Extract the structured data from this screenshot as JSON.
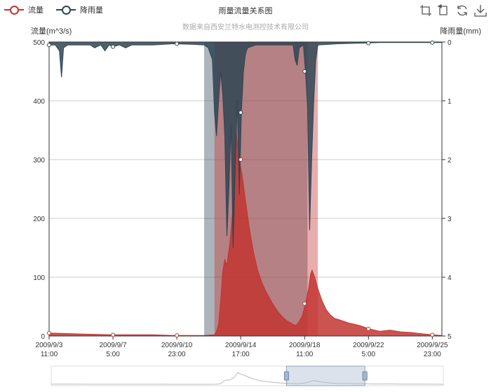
{
  "legend": [
    {
      "name": "流量",
      "color": "#c23531",
      "icon": "circle-line-icon"
    },
    {
      "name": "降雨量",
      "color": "#2f4554",
      "icon": "circle-line-icon"
    }
  ],
  "toolbox": [
    {
      "name": "zoom-icon",
      "label": "区域缩放"
    },
    {
      "name": "zoom-reset-icon",
      "label": "区域缩放还原"
    },
    {
      "name": "restore-icon",
      "label": "还原"
    },
    {
      "name": "save-image-icon",
      "label": "保存为图片"
    }
  ],
  "chart_data": {
    "type": "area",
    "title": "雨量流量关系图",
    "subtitle": "数据来自西安兰特水电测控技术有限公司",
    "x_tick_labels": [
      [
        "2009/9/3",
        "11:00"
      ],
      [
        "2009/9/7",
        "5:00"
      ],
      [
        "2009/9/10",
        "23:00"
      ],
      [
        "2009/9/14",
        "17:00"
      ],
      [
        "2009/9/18",
        "11:00"
      ],
      [
        "2009/9/22",
        "5:00"
      ],
      [
        "2009/9/25",
        "23:00"
      ]
    ],
    "y_left": {
      "name": "流量(m^3/s)",
      "min": 0,
      "max": 500,
      "ticks": [
        0,
        100,
        200,
        300,
        400,
        500
      ]
    },
    "y_right": {
      "name": "降雨量(mm)",
      "min": 0,
      "max": 5,
      "inverse": true,
      "ticks": [
        0,
        1,
        2,
        3,
        4,
        5
      ]
    },
    "mark_areas": [
      {
        "series": "降雨量",
        "color": "#2f4554",
        "opacity": 0.4,
        "from_day": 7.5,
        "to_day": 12.5
      },
      {
        "series": "流量",
        "color": "#c23531",
        "opacity": 0.4,
        "from_day": 8.0,
        "to_day": 13.0
      }
    ],
    "series": [
      {
        "name": "流量",
        "color": "#c23531",
        "points": [
          [
            0,
            5
          ],
          [
            1,
            4
          ],
          [
            2,
            3
          ],
          [
            3,
            2
          ],
          [
            4,
            2
          ],
          [
            5,
            2
          ],
          [
            6,
            1
          ],
          [
            7,
            1
          ],
          [
            7.5,
            1
          ],
          [
            8,
            2
          ],
          [
            8.1,
            8
          ],
          [
            8.2,
            20
          ],
          [
            8.3,
            60
          ],
          [
            8.4,
            110
          ],
          [
            8.5,
            130
          ],
          [
            8.6,
            120
          ],
          [
            8.75,
            160
          ],
          [
            8.9,
            220
          ],
          [
            9.0,
            320
          ],
          [
            9.05,
            350
          ],
          [
            9.1,
            330
          ],
          [
            9.2,
            300
          ],
          [
            9.35,
            270
          ],
          [
            9.5,
            230
          ],
          [
            9.7,
            180
          ],
          [
            9.9,
            140
          ],
          [
            10.1,
            110
          ],
          [
            10.3,
            90
          ],
          [
            10.5,
            75
          ],
          [
            10.7,
            62
          ],
          [
            10.9,
            50
          ],
          [
            11.1,
            40
          ],
          [
            11.3,
            32
          ],
          [
            11.5,
            26
          ],
          [
            11.7,
            22
          ],
          [
            11.9,
            18
          ],
          [
            12.0,
            20
          ],
          [
            12.1,
            25
          ],
          [
            12.25,
            35
          ],
          [
            12.4,
            55
          ],
          [
            12.55,
            80
          ],
          [
            12.65,
            105
          ],
          [
            12.72,
            112
          ],
          [
            12.85,
            100
          ],
          [
            13.0,
            80
          ],
          [
            13.2,
            60
          ],
          [
            13.4,
            45
          ],
          [
            13.6,
            36
          ],
          [
            13.8,
            30
          ],
          [
            14,
            28
          ],
          [
            14.5,
            22
          ],
          [
            15,
            18
          ],
          [
            15.5,
            12
          ],
          [
            16,
            8
          ],
          [
            16.5,
            10
          ],
          [
            17,
            7
          ],
          [
            17.5,
            6
          ],
          [
            18,
            4
          ],
          [
            18.5,
            2
          ],
          [
            19,
            1
          ]
        ]
      },
      {
        "name": "降雨量",
        "color": "#2f4554",
        "points": [
          [
            0,
            0.05
          ],
          [
            0.3,
            0.05
          ],
          [
            0.5,
            0.15
          ],
          [
            0.6,
            0.6
          ],
          [
            0.7,
            0.1
          ],
          [
            0.9,
            0.05
          ],
          [
            1.2,
            0.05
          ],
          [
            1.5,
            0.05
          ],
          [
            2.0,
            0.05
          ],
          [
            2.2,
            0.1
          ],
          [
            2.5,
            0.05
          ],
          [
            2.7,
            0.15
          ],
          [
            2.9,
            0.05
          ],
          [
            3.1,
            0.08
          ],
          [
            3.4,
            0.05
          ],
          [
            3.7,
            0.1
          ],
          [
            4.0,
            0.05
          ],
          [
            4.3,
            0.05
          ],
          [
            4.6,
            0.05
          ],
          [
            5,
            0.05
          ],
          [
            6,
            0.03
          ],
          [
            7,
            0.04
          ],
          [
            7.5,
            0.05
          ],
          [
            7.7,
            0.1
          ],
          [
            7.9,
            0.3
          ],
          [
            8.0,
            1.2
          ],
          [
            8.1,
            1.6
          ],
          [
            8.2,
            1.0
          ],
          [
            8.3,
            0.5
          ],
          [
            8.4,
            0.9
          ],
          [
            8.5,
            1.6
          ],
          [
            8.6,
            3.3
          ],
          [
            8.7,
            2.5
          ],
          [
            8.8,
            1.4
          ],
          [
            8.9,
            3.5
          ],
          [
            9.0,
            2.2
          ],
          [
            9.1,
            1.0
          ],
          [
            9.2,
            2.6
          ],
          [
            9.3,
            1.2
          ],
          [
            9.4,
            0.5
          ],
          [
            9.5,
            0.2
          ],
          [
            9.6,
            0.1
          ],
          [
            10,
            0.05
          ],
          [
            10.5,
            0.05
          ],
          [
            11,
            0.05
          ],
          [
            11.5,
            0.05
          ],
          [
            11.8,
            0.05
          ],
          [
            11.9,
            0.3
          ],
          [
            12.0,
            0.4
          ],
          [
            12.1,
            0.1
          ],
          [
            12.3,
            0.05
          ],
          [
            12.4,
            0.5
          ],
          [
            12.5,
            1.1
          ],
          [
            12.6,
            3.2
          ],
          [
            12.7,
            2.0
          ],
          [
            12.8,
            1.0
          ],
          [
            12.9,
            0.3
          ],
          [
            13.0,
            0.05
          ],
          [
            14,
            0.03
          ],
          [
            15,
            0.02
          ],
          [
            16,
            0.01
          ],
          [
            17,
            0.01
          ],
          [
            18,
            0.01
          ],
          [
            19,
            0.01
          ]
        ]
      }
    ]
  },
  "datazoom": {
    "start_fraction": 0.6,
    "end_fraction": 0.8
  }
}
